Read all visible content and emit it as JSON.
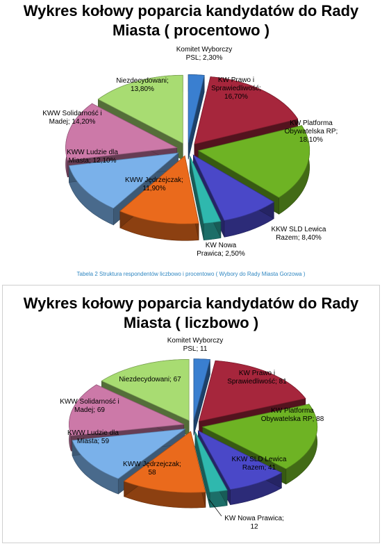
{
  "chart_data": [
    {
      "type": "pie",
      "title": [
        "Wykres kołowy poparcia kandydatów do Rady",
        "Miasta ( procentowo )"
      ],
      "slices": [
        {
          "label": [
            "Komitet Wyborczy",
            "PSL; 2,30%"
          ],
          "value": 2.3,
          "color": "#3a7fd0"
        },
        {
          "label": [
            "KW Prawo i",
            "Sprawiedliwość;",
            "16,70%"
          ],
          "value": 16.7,
          "color": "#a6263c"
        },
        {
          "label": [
            "KW Platforma",
            "Obywatelska RP;",
            "18,10%"
          ],
          "value": 18.1,
          "color": "#6eb324"
        },
        {
          "label": [
            "KKW SLD Lewica",
            "Razem; 8,40%"
          ],
          "value": 8.4,
          "color": "#4a48c8"
        },
        {
          "label": [
            "KW Nowa",
            "Prawica; 2,50%"
          ],
          "value": 2.5,
          "color": "#2fb8ae"
        },
        {
          "label": [
            "KWW Jędrzejczak;",
            "11,90%"
          ],
          "value": 11.9,
          "color": "#ea6a1c"
        },
        {
          "label": [
            "KWW Ludzie dla",
            "Miasta; 12,10%"
          ],
          "value": 12.1,
          "color": "#7ab1ea"
        },
        {
          "label": [
            "KWW Solidarność i",
            "Madej; 14,20%"
          ],
          "value": 14.2,
          "color": "#cc79a8"
        },
        {
          "label": [
            "Niezdecydowani;",
            "13,80%"
          ],
          "value": 13.8,
          "color": "#a8dc72"
        }
      ]
    },
    {
      "type": "pie",
      "title": [
        "Wykres kołowy poparcia kandydatów do Rady",
        "Miasta (  liczbowo )"
      ],
      "slices": [
        {
          "label": [
            "Komitet Wyborczy",
            "PSL; 11"
          ],
          "value": 11,
          "color": "#3a7fd0"
        },
        {
          "label": [
            "KW Prawo i",
            "Sprawiedliwość; 81"
          ],
          "value": 81,
          "color": "#a6263c"
        },
        {
          "label": [
            "KW Platforma",
            "Obywatelska RP; 88"
          ],
          "value": 88,
          "color": "#6eb324"
        },
        {
          "label": [
            "KKW SLD Lewica",
            "Razem; 41"
          ],
          "value": 41,
          "color": "#4a48c8"
        },
        {
          "label": [
            "KW Nowa Prawica;",
            "12"
          ],
          "value": 12,
          "color": "#2fb8ae"
        },
        {
          "label": [
            "KWW Jędrzejczak;",
            "58"
          ],
          "value": 58,
          "color": "#ea6a1c"
        },
        {
          "label": [
            "KWW Ludzie dla",
            "Miasta; 59"
          ],
          "value": 59,
          "color": "#7ab1ea"
        },
        {
          "label": [
            "KWW Solidarność i",
            "Madej; 69"
          ],
          "value": 69,
          "color": "#cc79a8"
        },
        {
          "label": [
            "Niezdecydowani; 67"
          ],
          "value": 67,
          "color": "#a8dc72"
        }
      ]
    }
  ],
  "caption": "Tabela 2 Struktura respondentów liczbowo i procentowo ( Wybory do Rady Miasta Gorzowa )"
}
